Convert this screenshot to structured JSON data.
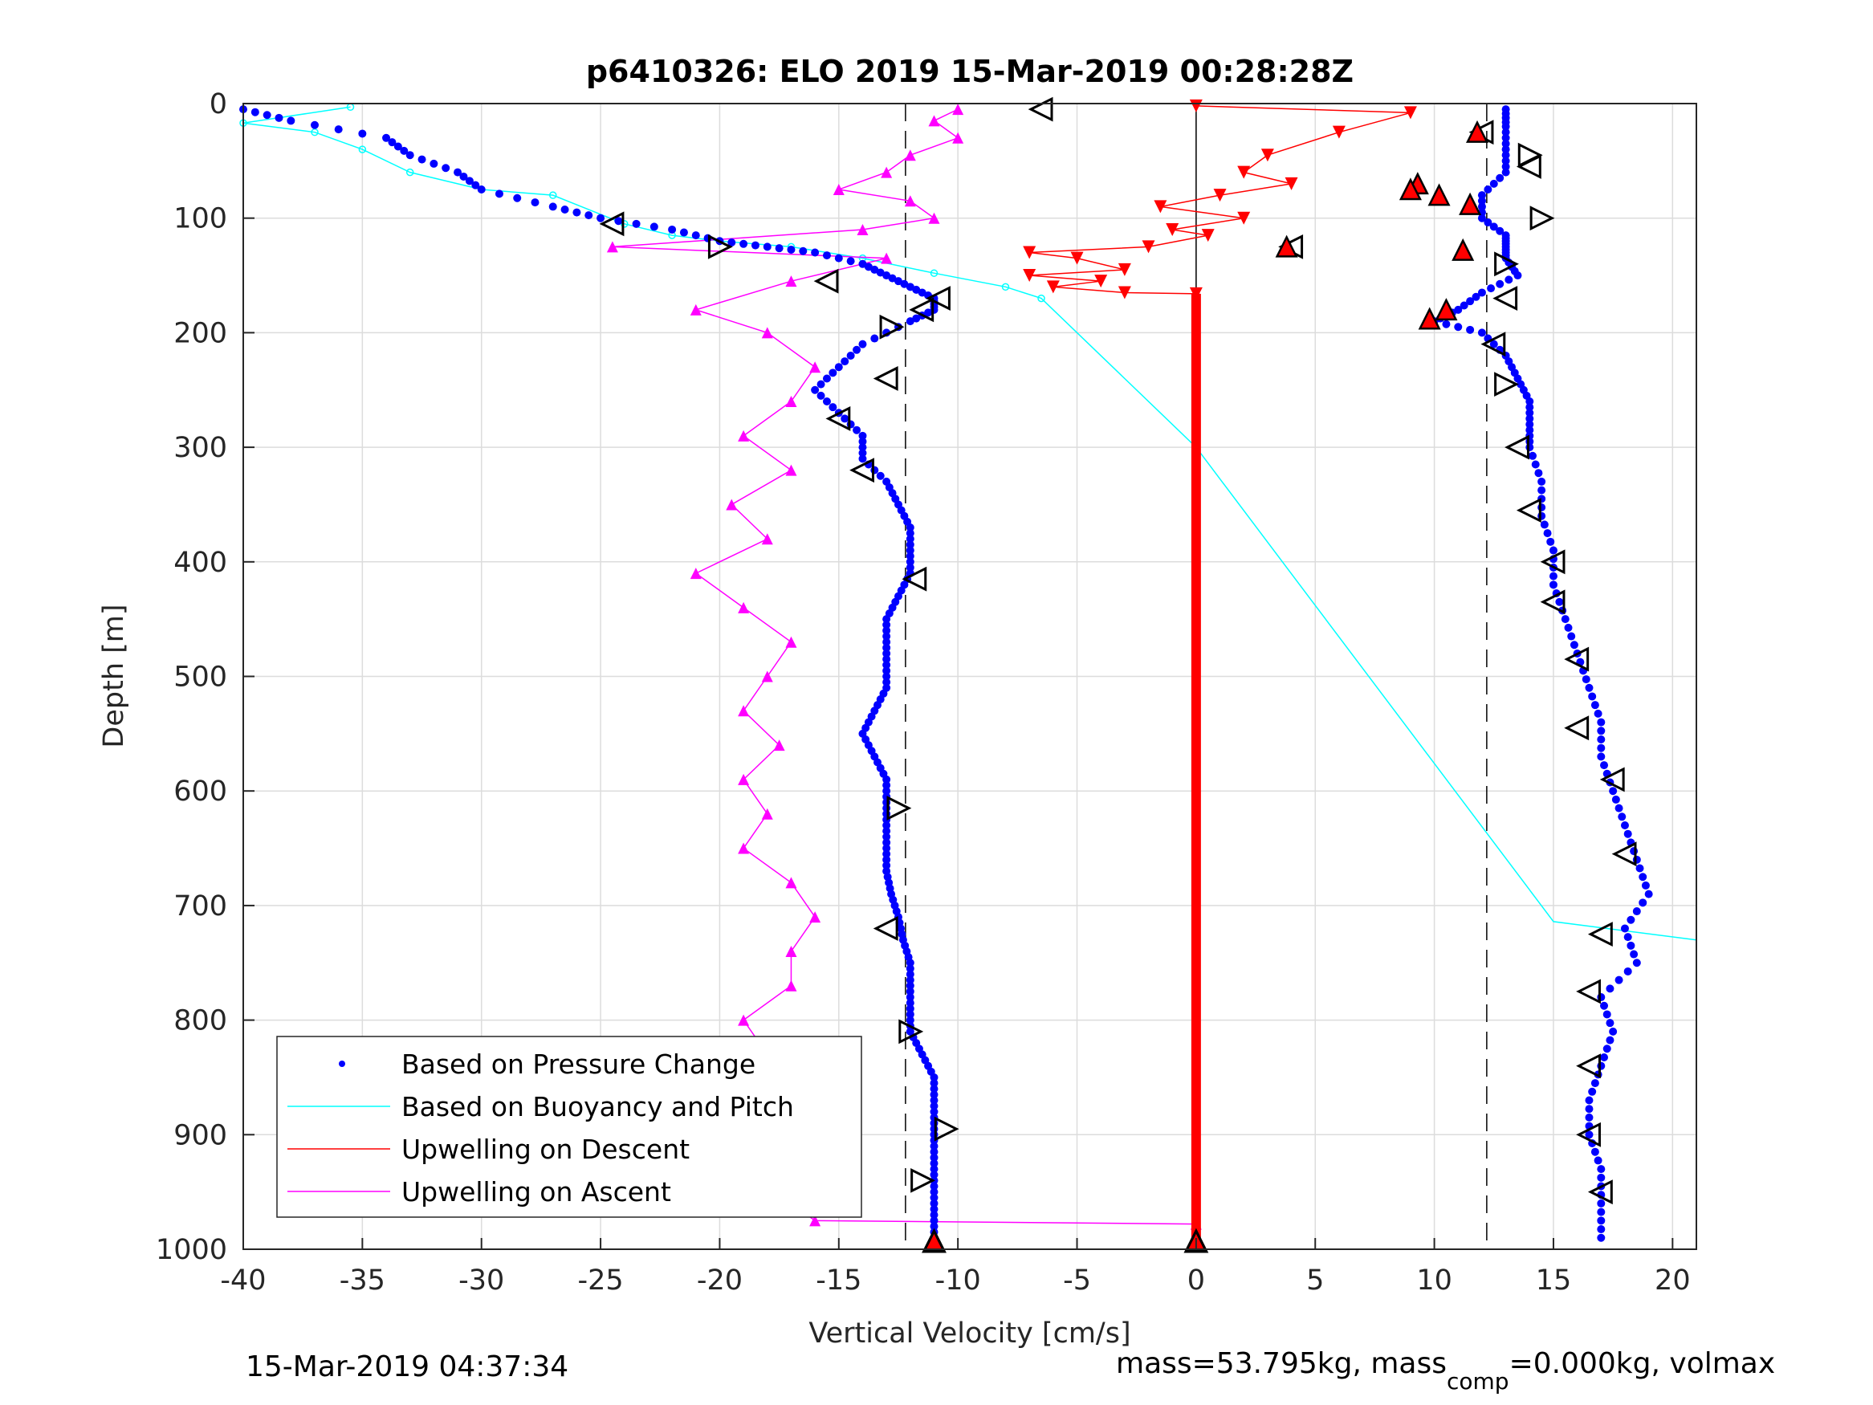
{
  "chart_data": {
    "type": "scatter",
    "title": "p6410326: ELO 2019 15-Mar-2019 00:28:28Z",
    "xlabel": "Vertical Velocity [cm/s]",
    "ylabel": "Depth [m]",
    "xlim": [
      -40,
      21
    ],
    "ylim": [
      0,
      1000
    ],
    "y_reversed": true,
    "grid": true,
    "xticks": [
      "-40",
      "-35",
      "-30",
      "-25",
      "-20",
      "-15",
      "-10",
      "-5",
      "0",
      "5",
      "10",
      "15",
      "20"
    ],
    "xtick_values": [
      -40,
      -35,
      -30,
      -25,
      -20,
      -15,
      -10,
      -5,
      0,
      5,
      10,
      15,
      20
    ],
    "yticks": [
      "0",
      "100",
      "200",
      "300",
      "400",
      "500",
      "600",
      "700",
      "800",
      "900",
      "1000"
    ],
    "ytick_values": [
      0,
      100,
      200,
      300,
      400,
      500,
      600,
      700,
      800,
      900,
      1000
    ],
    "reference_lines": {
      "vertical_dashed": [
        -12.2,
        12.2
      ],
      "vertical_solid": [
        0
      ]
    },
    "legend_position": "bottom-left",
    "series": [
      {
        "name": "Based on Pressure Change",
        "color": "#0000ff",
        "marker": "dot",
        "descent": {
          "depth": [
            5,
            15,
            30,
            45,
            60,
            75,
            90,
            100,
            110,
            120,
            125,
            130,
            140,
            150,
            160,
            170,
            180,
            190,
            210,
            230,
            250,
            270,
            290,
            310,
            330,
            350,
            370,
            390,
            410,
            430,
            450,
            470,
            490,
            510,
            530,
            550,
            570,
            590,
            610,
            630,
            650,
            670,
            690,
            710,
            730,
            750,
            770,
            790,
            810,
            830,
            850,
            870,
            890,
            910,
            930,
            950,
            970,
            990
          ],
          "velocity": [
            -40,
            -38,
            -34,
            -33,
            -31,
            -30,
            -27,
            -25,
            -22,
            -20,
            -18,
            -16,
            -14,
            -13,
            -12,
            -11,
            -11,
            -12,
            -14,
            -15,
            -16,
            -15,
            -14,
            -14,
            -13,
            -12.5,
            -12,
            -12,
            -12,
            -12.5,
            -13,
            -13,
            -13,
            -13,
            -13.5,
            -14,
            -13.5,
            -13,
            -13,
            -13,
            -13,
            -13,
            -12.8,
            -12.5,
            -12.3,
            -12,
            -12,
            -12,
            -12,
            -11.5,
            -11,
            -11,
            -11,
            -11,
            -11,
            -11,
            -11,
            -11
          ]
        },
        "ascent": {
          "depth": [
            5,
            20,
            40,
            60,
            80,
            100,
            115,
            125,
            135,
            150,
            165,
            180,
            190,
            200,
            220,
            240,
            260,
            280,
            300,
            330,
            360,
            390,
            420,
            450,
            480,
            510,
            540,
            570,
            600,
            630,
            660,
            690,
            720,
            750,
            780,
            810,
            840,
            870,
            900,
            930,
            960,
            990
          ],
          "velocity": [
            13,
            13,
            13,
            13,
            12,
            12,
            13,
            13,
            13,
            13.5,
            12,
            11,
            10,
            12,
            13,
            13.5,
            14,
            14,
            14,
            14.5,
            14.5,
            15,
            15,
            15.5,
            16,
            16.5,
            17,
            17,
            17.5,
            18,
            18.5,
            19,
            18,
            18.5,
            17,
            17.5,
            17,
            16.5,
            16.5,
            17,
            17,
            17
          ]
        }
      },
      {
        "name": "Based on Buoyancy and Pitch",
        "color": "#00ffff",
        "x": [
          -35.5,
          -40,
          -37,
          -35,
          -33,
          -30,
          -27,
          -24,
          -22,
          -20,
          -17,
          -14,
          -11,
          -8,
          -6.5,
          0,
          5,
          10,
          15,
          21
        ],
        "y": [
          3,
          17,
          25,
          40,
          60,
          75,
          80,
          105,
          115,
          120,
          125,
          135,
          148,
          160,
          170,
          300,
          438,
          576,
          714,
          730
        ]
      },
      {
        "name": "Upwelling on Descent",
        "color": "#ff0000",
        "marker": "triangle-down",
        "x": [
          0,
          9,
          6,
          3,
          2,
          4,
          1,
          -1.5,
          2,
          -1,
          0.5,
          -2,
          -7,
          -5,
          -3,
          -7,
          -4,
          -6,
          -3,
          0
        ],
        "y": [
          2,
          8,
          25,
          45,
          60,
          70,
          80,
          90,
          100,
          110,
          115,
          125,
          130,
          135,
          145,
          150,
          155,
          160,
          165,
          166
        ]
      },
      {
        "name": "Upwelling on Ascent",
        "color": "#ff00ff",
        "marker": "triangle-up",
        "x": [
          -10,
          -11,
          -10,
          -12,
          -13,
          -15,
          -12,
          -11,
          -14,
          -24.5,
          -13,
          -17,
          -21,
          -18,
          -16,
          -17,
          -19,
          -17,
          -19.5,
          -18,
          -21,
          -19,
          -17,
          -18,
          -19,
          -17.5,
          -19,
          -18,
          -19,
          -17,
          -16,
          -17,
          -17,
          -19,
          -18,
          -17,
          -19,
          -17,
          -20,
          -18,
          -17,
          -16,
          0
        ],
        "y": [
          5,
          15,
          30,
          45,
          60,
          75,
          85,
          100,
          110,
          125,
          135,
          155,
          180,
          200,
          230,
          260,
          290,
          320,
          350,
          380,
          410,
          440,
          470,
          500,
          530,
          560,
          590,
          620,
          650,
          680,
          710,
          740,
          770,
          800,
          830,
          860,
          880,
          910,
          930,
          950,
          960,
          975,
          978
        ]
      }
    ],
    "markers_black_triangles": [
      {
        "x": -6.5,
        "y": 5,
        "dir": "left"
      },
      {
        "x": -24.5,
        "y": 105,
        "dir": "left"
      },
      {
        "x": -20,
        "y": 125,
        "dir": "right"
      },
      {
        "x": -15.5,
        "y": 155,
        "dir": "left"
      },
      {
        "x": -11.5,
        "y": 180,
        "dir": "left"
      },
      {
        "x": -10.8,
        "y": 170,
        "dir": "left"
      },
      {
        "x": -12.8,
        "y": 195,
        "dir": "right"
      },
      {
        "x": -13,
        "y": 240,
        "dir": "left"
      },
      {
        "x": -15,
        "y": 275,
        "dir": "left"
      },
      {
        "x": -14,
        "y": 320,
        "dir": "left"
      },
      {
        "x": -11.8,
        "y": 415,
        "dir": "left"
      },
      {
        "x": -12.5,
        "y": 615,
        "dir": "right"
      },
      {
        "x": -13,
        "y": 720,
        "dir": "left"
      },
      {
        "x": -12,
        "y": 810,
        "dir": "right"
      },
      {
        "x": -10.5,
        "y": 895,
        "dir": "right"
      },
      {
        "x": -11.5,
        "y": 940,
        "dir": "right"
      },
      {
        "x": -11,
        "y": 993,
        "dir": "up"
      },
      {
        "x": 12,
        "y": 25,
        "dir": "left"
      },
      {
        "x": 14,
        "y": 45,
        "dir": "right"
      },
      {
        "x": 14,
        "y": 55,
        "dir": "left"
      },
      {
        "x": 14.5,
        "y": 100,
        "dir": "right"
      },
      {
        "x": 13,
        "y": 140,
        "dir": "right"
      },
      {
        "x": 13,
        "y": 170,
        "dir": "left"
      },
      {
        "x": 12.5,
        "y": 210,
        "dir": "left"
      },
      {
        "x": 13,
        "y": 245,
        "dir": "right"
      },
      {
        "x": 13.5,
        "y": 300,
        "dir": "left"
      },
      {
        "x": 14,
        "y": 355,
        "dir": "left"
      },
      {
        "x": 15,
        "y": 400,
        "dir": "left"
      },
      {
        "x": 15,
        "y": 435,
        "dir": "left"
      },
      {
        "x": 16,
        "y": 485,
        "dir": "left"
      },
      {
        "x": 16,
        "y": 545,
        "dir": "left"
      },
      {
        "x": 17.5,
        "y": 590,
        "dir": "left"
      },
      {
        "x": 18,
        "y": 655,
        "dir": "left"
      },
      {
        "x": 17,
        "y": 725,
        "dir": "left"
      },
      {
        "x": 16.5,
        "y": 775,
        "dir": "left"
      },
      {
        "x": 16.5,
        "y": 840,
        "dir": "left"
      },
      {
        "x": 16.5,
        "y": 900,
        "dir": "left"
      },
      {
        "x": 17,
        "y": 950,
        "dir": "left"
      },
      {
        "x": 4,
        "y": 125,
        "dir": "left"
      },
      {
        "x": 0,
        "y": 993,
        "dir": "up"
      }
    ],
    "markers_red_filled": [
      {
        "x": 11.8,
        "y": 25
      },
      {
        "x": 9.3,
        "y": 70
      },
      {
        "x": 10.2,
        "y": 80
      },
      {
        "x": 11.5,
        "y": 88
      },
      {
        "x": 9,
        "y": 75
      },
      {
        "x": 3.8,
        "y": 125
      },
      {
        "x": 11.2,
        "y": 128
      },
      {
        "x": 10.5,
        "y": 180
      },
      {
        "x": 9.8,
        "y": 188
      },
      {
        "x": -11,
        "y": 993
      },
      {
        "x": 0,
        "y": 993
      }
    ]
  },
  "footer": {
    "timestamp": "15-Mar-2019 04:37:34",
    "mass_prefix": "mass=53.795kg, mass",
    "mass_sub": "comp",
    "mass_suffix": "=0.000kg, volmax"
  }
}
